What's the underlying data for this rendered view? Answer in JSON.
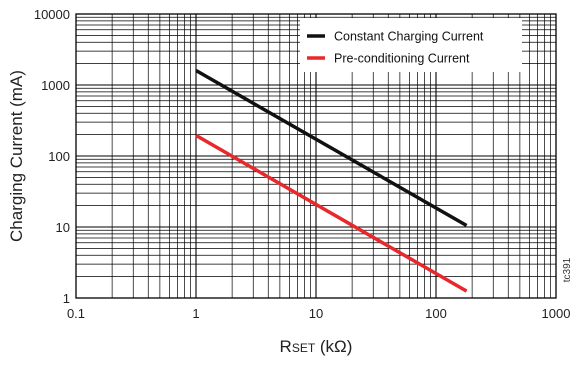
{
  "chart_data": {
    "type": "line",
    "x_scale": "log",
    "y_scale": "log",
    "xlim": [
      0.1,
      1000
    ],
    "ylim": [
      1,
      10000
    ],
    "xlabel_main": "R",
    "xlabel_sub": "SET",
    "xlabel_unit": " (kΩ)",
    "ylabel": "Charging Current (mA)",
    "x_ticks": [
      "0.1",
      "1",
      "10",
      "100",
      "1000"
    ],
    "y_ticks": [
      "1",
      "10",
      "100",
      "1000",
      "10000"
    ],
    "grid": true,
    "legend_position": "top-right",
    "series": [
      {
        "name": "Constant Charging Current",
        "color": "#111111",
        "x": [
          1,
          180
        ],
        "y": [
          1600,
          10.5
        ]
      },
      {
        "name": "Pre-conditioning Current",
        "color": "#e8282b",
        "x": [
          1,
          180
        ],
        "y": [
          195,
          1.25
        ]
      }
    ],
    "annotation": "tc391"
  }
}
